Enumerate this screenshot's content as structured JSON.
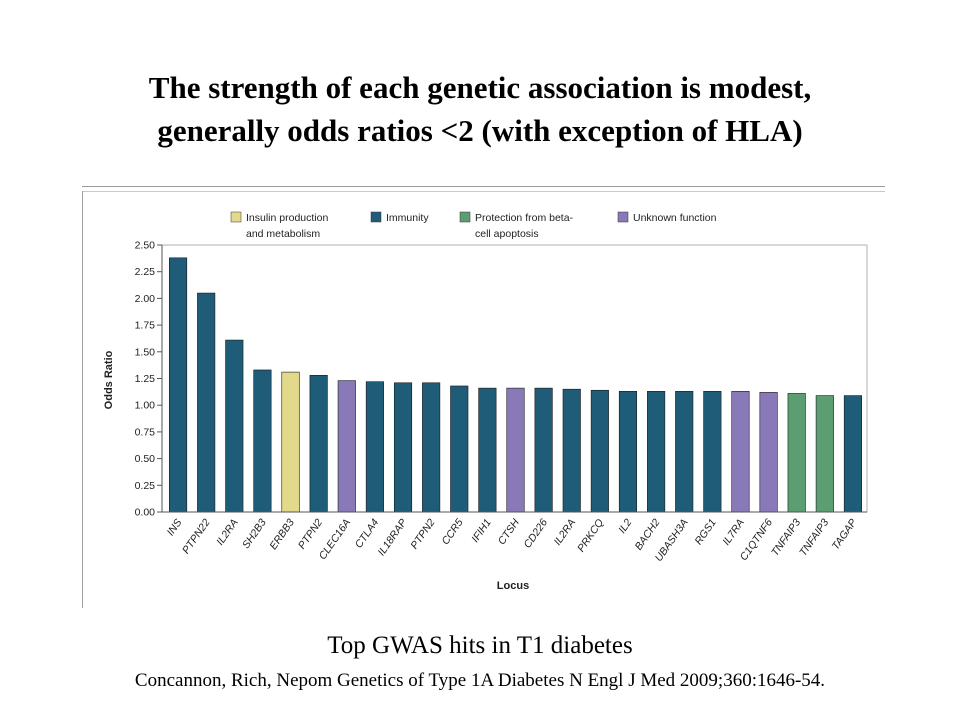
{
  "slide": {
    "title_line1": "The strength of each genetic association is modest,",
    "title_line2": "generally odds ratios <2 (with exception of HLA)",
    "caption": "Top GWAS hits in T1 diabetes",
    "citation": "Concannon, Rich, Nepom Genetics of Type 1A Diabetes N Engl J Med 2009;360:1646-54."
  },
  "chart_data": {
    "type": "bar",
    "xlabel": "Locus",
    "ylabel": "Odds Ratio",
    "ylim": [
      0,
      2.5
    ],
    "yticks": [
      "0.00",
      "0.25",
      "0.50",
      "0.75",
      "1.00",
      "1.25",
      "1.50",
      "1.75",
      "2.00",
      "2.25",
      "2.50"
    ],
    "grid": false,
    "legend_position": "top",
    "legend": [
      {
        "key": "insulin",
        "label_line1": "Insulin production",
        "label_line2": "and metabolism",
        "color": "#e3d98a"
      },
      {
        "key": "immunity",
        "label_line1": "Immunity",
        "label_line2": "",
        "color": "#1f5c78"
      },
      {
        "key": "protection",
        "label_line1": "Protection from beta-",
        "label_line2": "cell apoptosis",
        "color": "#5c9e72"
      },
      {
        "key": "unknown",
        "label_line1": "Unknown function",
        "label_line2": "",
        "color": "#8a79b8"
      }
    ],
    "categories": [
      "INS",
      "PTPN22",
      "IL2RA",
      "SH2B3",
      "ERBB3",
      "PTPN2",
      "CLEC16A",
      "CTLA4",
      "IL18RAP",
      "PTPN2",
      "CCR5",
      "IFIH1",
      "CTSH",
      "CD226",
      "IL2RA",
      "PRKCQ",
      "IL2",
      "BACH2",
      "UBASH3A",
      "RGS1",
      "IL7RA",
      "C1QTNF6",
      "TNFAIP3",
      "TNFAIP3",
      "TAGAP"
    ],
    "values": [
      2.38,
      2.05,
      1.61,
      1.33,
      1.31,
      1.28,
      1.23,
      1.22,
      1.21,
      1.21,
      1.18,
      1.16,
      1.16,
      1.16,
      1.15,
      1.14,
      1.13,
      1.13,
      1.13,
      1.13,
      1.13,
      1.12,
      1.11,
      1.09,
      1.09
    ],
    "groups": [
      "immunity",
      "immunity",
      "immunity",
      "immunity",
      "insulin",
      "immunity",
      "unknown",
      "immunity",
      "immunity",
      "immunity",
      "immunity",
      "immunity",
      "unknown",
      "immunity",
      "immunity",
      "immunity",
      "immunity",
      "immunity",
      "immunity",
      "immunity",
      "unknown",
      "unknown",
      "protection",
      "protection",
      "immunity"
    ]
  }
}
